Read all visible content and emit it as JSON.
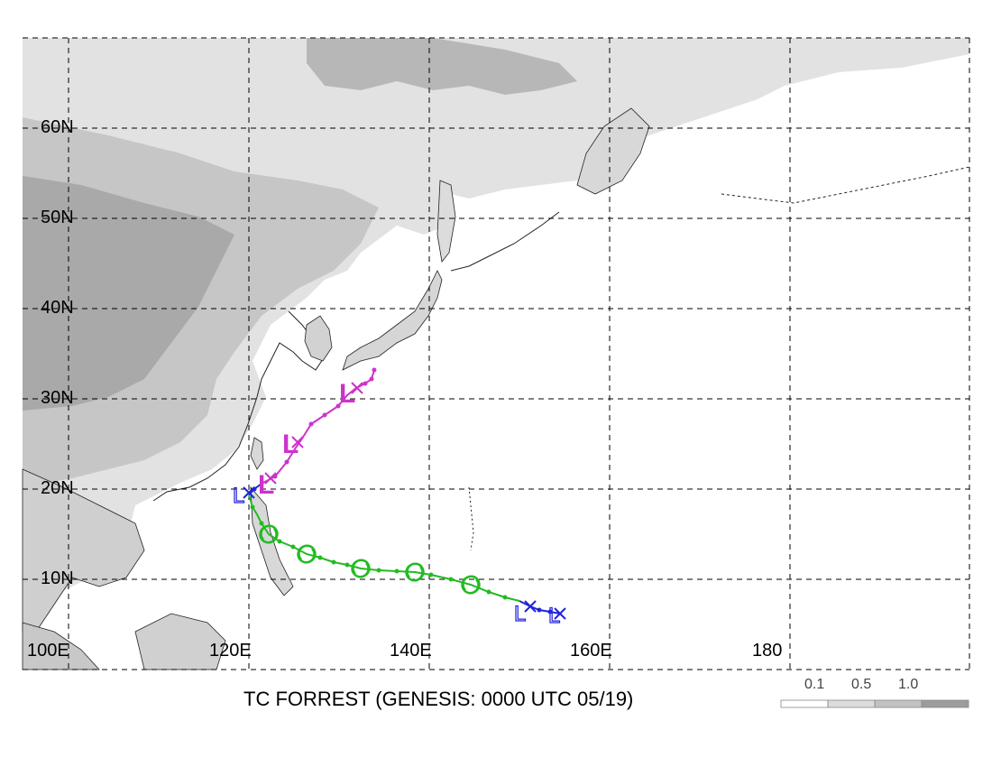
{
  "map": {
    "lat_labels": [
      "60N",
      "50N",
      "40N",
      "30N",
      "20N",
      "10N"
    ],
    "lon_labels": [
      "100E",
      "120E",
      "140E",
      "160E",
      "180"
    ],
    "title": "TC FORREST (GENESIS: 0000 UTC 05/19)"
  },
  "legend": {
    "labels": [
      "0.1",
      "0.5",
      "1.0"
    ],
    "colors": [
      "#ffffff",
      "#dcdcdc",
      "#c2c2c2",
      "#9c9c9c"
    ]
  },
  "colors": {
    "land_light": "#e2e2e2",
    "land_mid": "#c6c6c6",
    "land_dark": "#a9a9a9",
    "track_low": "#2222dd",
    "track_storm": "#22bb22",
    "track_extratropical": "#cc33cc"
  },
  "track_symbols": {
    "low": "L",
    "extratropical": "L",
    "position": "×"
  }
}
